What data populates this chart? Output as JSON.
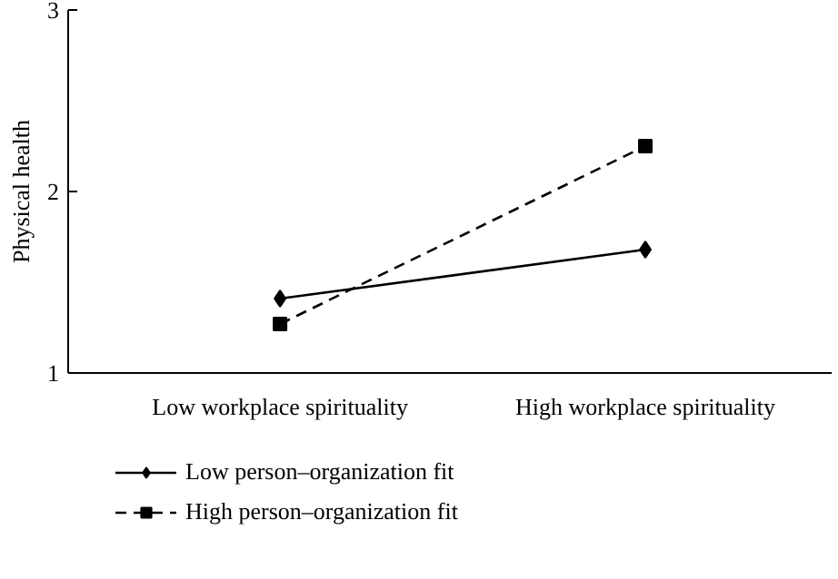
{
  "chart_data": {
    "type": "line",
    "ylabel": "Physical health",
    "categories": [
      "Low workplace spirituality",
      "High workplace spirituality"
    ],
    "ylim": [
      1,
      3
    ],
    "yticks": [
      1,
      2,
      3
    ],
    "grid": false,
    "legend": "bottom",
    "series": [
      {
        "name": "Low person–organization fit",
        "color": "#000000",
        "marker": "diamond",
        "line_style": "solid",
        "values": [
          1.41,
          1.68
        ]
      },
      {
        "name": "High person–organization fit",
        "color": "#000000",
        "marker": "square",
        "line_style": "dashed",
        "values": [
          1.27,
          2.25
        ]
      }
    ]
  }
}
